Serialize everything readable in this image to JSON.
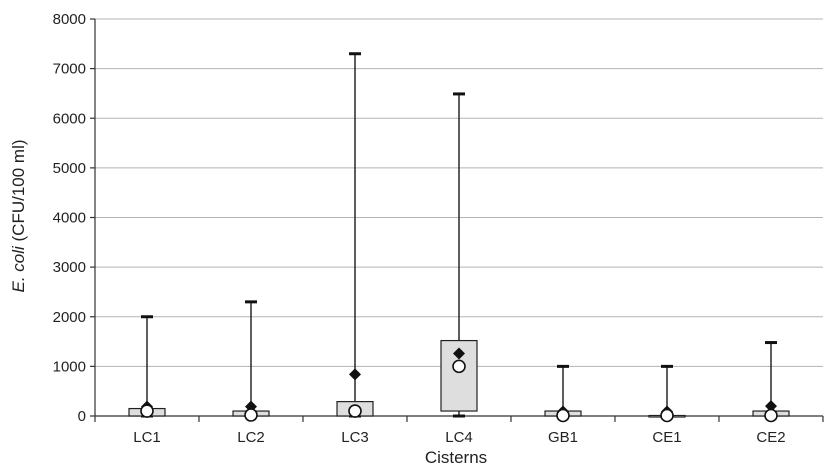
{
  "chart_data": {
    "type": "box",
    "xlabel": "Cisterns",
    "ylabel_italic": "E. coli",
    "ylabel_rest": " (CFU/100 ml)",
    "ylim": [
      0,
      8000
    ],
    "yticks": [
      0,
      1000,
      2000,
      3000,
      4000,
      5000,
      6000,
      7000,
      8000
    ],
    "grid": "horizontal",
    "legend": "none",
    "categories": [
      "LC1",
      "LC2",
      "LC3",
      "LC4",
      "GB1",
      "CE1",
      "CE2"
    ],
    "boxes": [
      {
        "category": "LC1",
        "min": 0,
        "q1": 0,
        "median": 100,
        "q3": 150,
        "max": 2000,
        "mean": 190
      },
      {
        "category": "LC2",
        "min": 0,
        "q1": 0,
        "median": 20,
        "q3": 100,
        "max": 2300,
        "mean": 190
      },
      {
        "category": "LC3",
        "min": 0,
        "q1": 0,
        "median": 100,
        "q3": 290,
        "max": 7300,
        "mean": 840
      },
      {
        "category": "LC4",
        "min": 0,
        "q1": 100,
        "median": 1000,
        "q3": 1520,
        "max": 6490,
        "mean": 1260
      },
      {
        "category": "GB1",
        "min": 0,
        "q1": 0,
        "median": 10,
        "q3": 100,
        "max": 1000,
        "mean": 90
      },
      {
        "category": "CE1",
        "min": 0,
        "q1": 0,
        "median": 10,
        "q3": 10,
        "max": 1000,
        "mean": 90
      },
      {
        "category": "CE2",
        "min": 0,
        "q1": 0,
        "median": 10,
        "q3": 100,
        "max": 1480,
        "mean": 200
      }
    ]
  }
}
